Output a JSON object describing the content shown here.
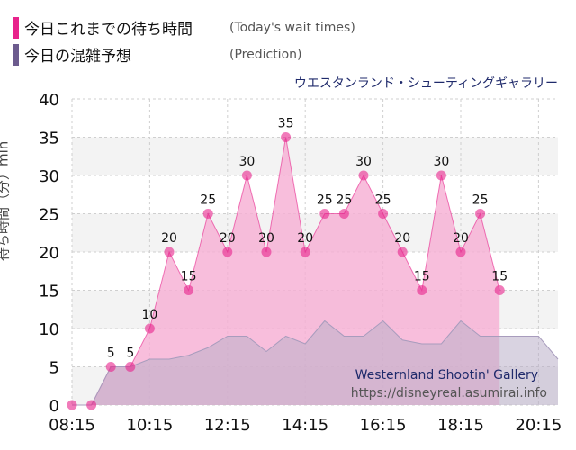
{
  "legend": {
    "actual_label": "今日これまでの待ち時間",
    "actual_sub": "(Today's wait times)",
    "prediction_label": "今日の混雑予想",
    "prediction_sub": "(Prediction)"
  },
  "colors": {
    "actual": "#e8238c",
    "prediction": "#6c5b8e",
    "actual_fill": "#f6aed3",
    "prediction_fill": "#b9aec9",
    "title": "#1f2a6b"
  },
  "watermark": {
    "name": "Westernland Shootin' Gallery",
    "url": "https://disneyreal.asumirai.info"
  },
  "chart_data": {
    "type": "area",
    "title": "ウエスタンランド・シューティングギャラリー",
    "ylabel": "待ち時間（分）min",
    "xlabel": "",
    "ylim": [
      0,
      40
    ],
    "yticks": [
      0,
      5,
      10,
      15,
      20,
      25,
      30,
      35,
      40
    ],
    "xticks": [
      "08:15",
      "10:15",
      "12:15",
      "14:15",
      "16:15",
      "18:15",
      "20:15"
    ],
    "xlim": [
      "08:15",
      "20:45"
    ],
    "grid": true,
    "series": [
      {
        "name": "今日これまでの待ち時間",
        "x": [
          "08:15",
          "08:45",
          "09:15",
          "09:45",
          "10:15",
          "10:45",
          "11:15",
          "11:45",
          "12:15",
          "12:45",
          "13:15",
          "13:45",
          "14:15",
          "14:45",
          "15:15",
          "15:45",
          "16:15",
          "16:45",
          "17:15",
          "17:45",
          "18:15",
          "18:45",
          "19:15"
        ],
        "values": [
          0,
          0,
          5,
          5,
          10,
          20,
          15,
          25,
          20,
          30,
          20,
          35,
          20,
          25,
          25,
          30,
          25,
          20,
          15,
          30,
          20,
          25,
          15
        ]
      },
      {
        "name": "今日の混雑予想",
        "x": [
          "08:15",
          "08:45",
          "09:15",
          "09:45",
          "10:15",
          "10:45",
          "11:15",
          "11:45",
          "12:15",
          "12:45",
          "13:15",
          "13:45",
          "14:15",
          "14:45",
          "15:15",
          "15:45",
          "16:15",
          "16:45",
          "17:15",
          "17:45",
          "18:15",
          "18:45",
          "19:15",
          "19:45",
          "20:15",
          "20:45"
        ],
        "values": [
          0,
          0,
          5,
          5,
          6,
          6,
          6.5,
          7.5,
          9,
          9,
          7,
          9,
          8,
          11,
          9,
          9,
          11,
          8.5,
          8,
          8,
          11,
          9,
          9,
          9,
          9,
          6
        ]
      }
    ]
  }
}
